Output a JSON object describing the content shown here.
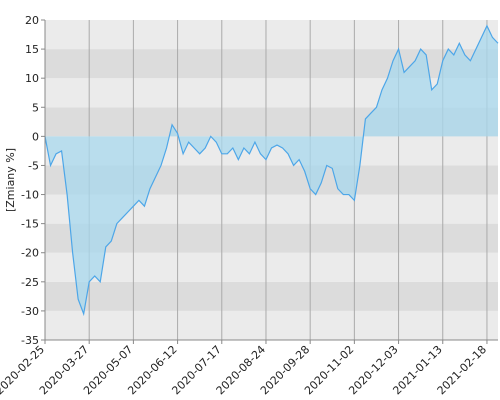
{
  "chart_data": {
    "type": "area",
    "y_label": "[Zmiany %]",
    "x": [
      "2020-02-25",
      "2020-02-28",
      "2020-03-04",
      "2020-03-09",
      "2020-03-12",
      "2020-03-16",
      "2020-03-19",
      "2020-03-24",
      "2020-03-27",
      "2020-04-01",
      "2020-04-06",
      "2020-04-10",
      "2020-04-16",
      "2020-04-21",
      "2020-04-24",
      "2020-04-29",
      "2020-05-07",
      "2020-05-12",
      "2020-05-15",
      "2020-05-20",
      "2020-05-25",
      "2020-05-28",
      "2020-06-02",
      "2020-06-08",
      "2020-06-12",
      "2020-06-16",
      "2020-06-22",
      "2020-06-25",
      "2020-06-30",
      "2020-07-03",
      "2020-07-08",
      "2020-07-13",
      "2020-07-17",
      "2020-07-22",
      "2020-07-27",
      "2020-07-30",
      "2020-08-04",
      "2020-08-07",
      "2020-08-12",
      "2020-08-18",
      "2020-08-24",
      "2020-08-27",
      "2020-09-01",
      "2020-09-04",
      "2020-09-09",
      "2020-09-14",
      "2020-09-17",
      "2020-09-22",
      "2020-09-28",
      "2020-10-01",
      "2020-10-06",
      "2020-10-09",
      "2020-10-14",
      "2020-10-19",
      "2020-10-22",
      "2020-10-27",
      "2020-11-02",
      "2020-11-05",
      "2020-11-09",
      "2020-11-13",
      "2020-11-17",
      "2020-11-20",
      "2020-11-24",
      "2020-11-27",
      "2020-12-03",
      "2020-12-08",
      "2020-12-11",
      "2020-12-16",
      "2020-12-21",
      "2020-12-29",
      "2021-01-04",
      "2021-01-08",
      "2021-01-13",
      "2021-01-18",
      "2021-01-21",
      "2021-01-26",
      "2021-01-29",
      "2021-02-03",
      "2021-02-08",
      "2021-02-12",
      "2021-02-18",
      "2021-02-23",
      "2021-02-26"
    ],
    "values": [
      0,
      -5,
      -3,
      -2.5,
      -10,
      -20,
      -28,
      -30.5,
      -25,
      -24,
      -25,
      -19,
      -18,
      -15,
      -14,
      -13,
      -12,
      -11,
      -12,
      -9,
      -7,
      -5,
      -2,
      2,
      0.5,
      -3,
      -1,
      -2,
      -3,
      -2,
      0,
      -1,
      -3,
      -3,
      -2,
      -4,
      -2,
      -3,
      -1,
      -3,
      -4,
      -2,
      -1.5,
      -2,
      -3,
      -5,
      -4,
      -6,
      -9,
      -10,
      -8,
      -5,
      -5.5,
      -9,
      -10,
      -10,
      -11,
      -5,
      3,
      4,
      5,
      8,
      10,
      13,
      15,
      11,
      12,
      13,
      15,
      14,
      8,
      9,
      13,
      15,
      14,
      16,
      14,
      13,
      15,
      17,
      19,
      17,
      16
    ],
    "color": "#4da6e8",
    "fill": "#a8d8ee",
    "xticks": [
      "2020-02-25",
      "2020-03-27",
      "2020-05-07",
      "2020-06-12",
      "2020-07-17",
      "2020-08-24",
      "2020-09-28",
      "2020-11-02",
      "2020-12-03",
      "2021-01-13",
      "2021-02-18"
    ],
    "ylim": [
      -35,
      20
    ],
    "yticks": [
      -35,
      -30,
      -25,
      -20,
      -15,
      -10,
      -5,
      0,
      5,
      10,
      15,
      20
    ],
    "grid": true
  }
}
